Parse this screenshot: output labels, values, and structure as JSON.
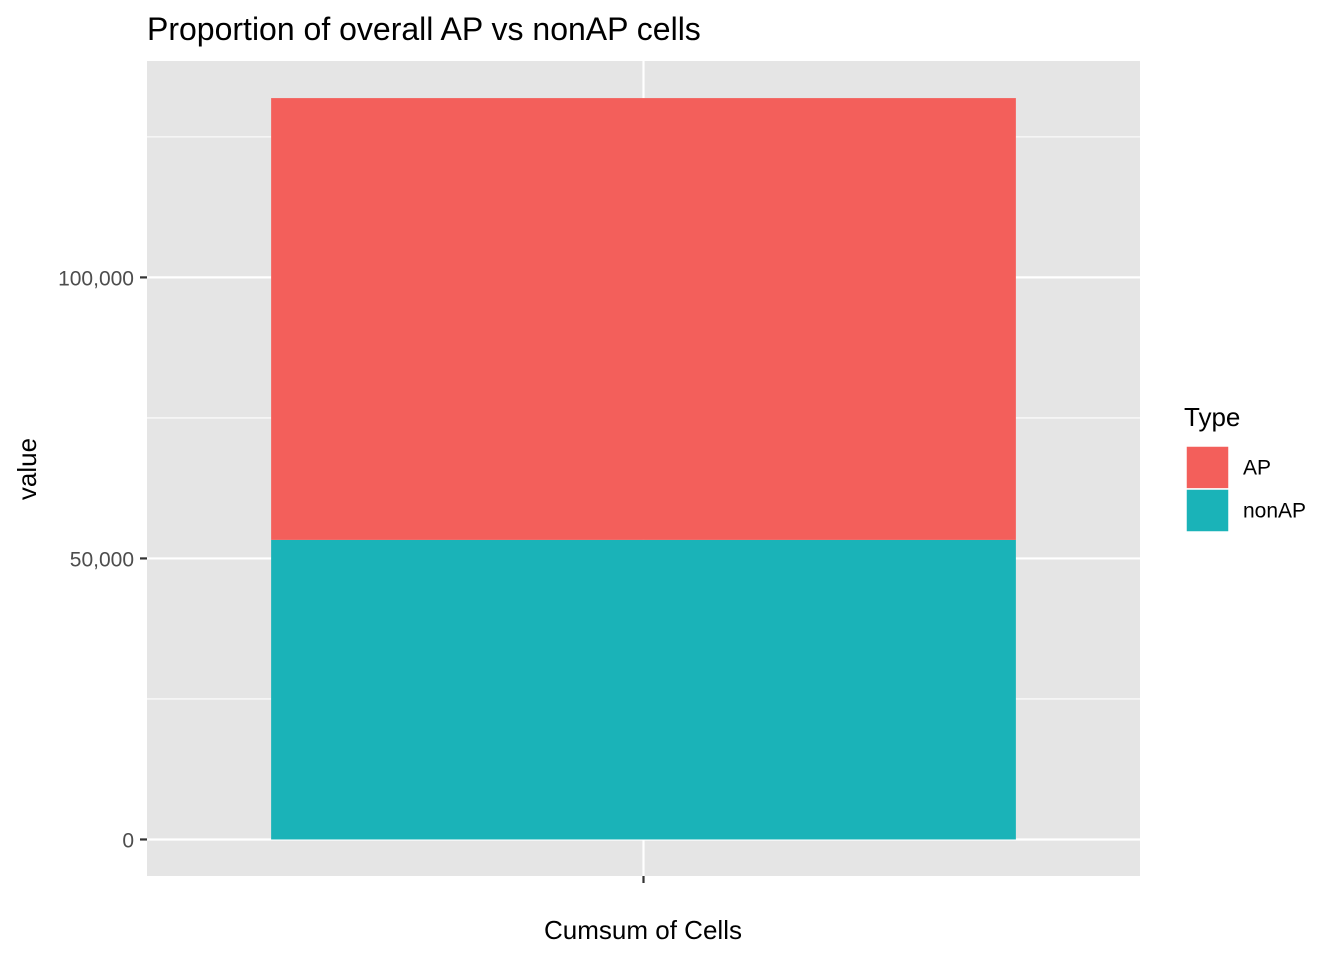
{
  "chart_data": {
    "type": "bar",
    "stacked": true,
    "title": "Proportion of overall AP vs nonAP cells",
    "xlabel": "Cumsum of Cells",
    "ylabel": "value",
    "categories": [
      ""
    ],
    "series": [
      {
        "name": "AP",
        "values": [
          78600
        ],
        "color": "#F35F5B"
      },
      {
        "name": "nonAP",
        "values": [
          53300
        ],
        "color": "#1AB3B8"
      }
    ],
    "ylim": [
      -6500,
      138500
    ],
    "yticks": [
      {
        "value": 0,
        "label": "0"
      },
      {
        "value": 50000,
        "label": "50,000"
      },
      {
        "value": 100000,
        "label": "100,000"
      }
    ],
    "grid": true,
    "legend": {
      "title": "Type",
      "position": "right",
      "entries": [
        "AP",
        "nonAP"
      ]
    },
    "colors": {
      "panel_background": "#E5E5E5",
      "grid_line": "#FFFFFF",
      "tick_mark": "#333333"
    }
  }
}
